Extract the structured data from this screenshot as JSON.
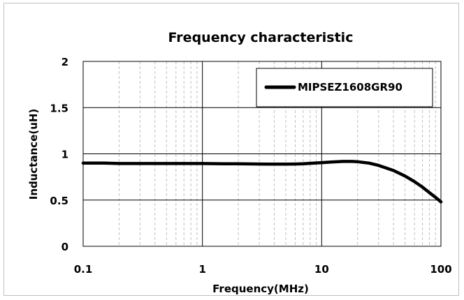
{
  "chart_data": {
    "type": "line",
    "title": "Frequency characteristic",
    "xlabel": "Frequency(MHz)",
    "ylabel": "Inductance(uH)",
    "x_scale": "log",
    "xlim": [
      0.1,
      100
    ],
    "ylim": [
      0,
      2
    ],
    "x_ticks": [
      "0.1",
      "1",
      "10",
      "100"
    ],
    "y_ticks": [
      "0",
      "0.5",
      "1",
      "1.5",
      "2"
    ],
    "grid": true,
    "legend_position": "top-right",
    "series": [
      {
        "name": "MIPSEZ1608GR90",
        "color": "#000000",
        "x": [
          0.1,
          0.15,
          0.2,
          0.3,
          0.5,
          0.7,
          1,
          1.5,
          2,
          3,
          4,
          5,
          6,
          7,
          8,
          10,
          12,
          15,
          18,
          20,
          25,
          30,
          40,
          50,
          60,
          70,
          80,
          90,
          100
        ],
        "y": [
          0.9,
          0.9,
          0.895,
          0.895,
          0.895,
          0.895,
          0.895,
          0.893,
          0.892,
          0.89,
          0.888,
          0.888,
          0.89,
          0.893,
          0.897,
          0.905,
          0.912,
          0.918,
          0.918,
          0.915,
          0.9,
          0.875,
          0.82,
          0.76,
          0.7,
          0.64,
          0.58,
          0.53,
          0.48
        ]
      }
    ]
  }
}
